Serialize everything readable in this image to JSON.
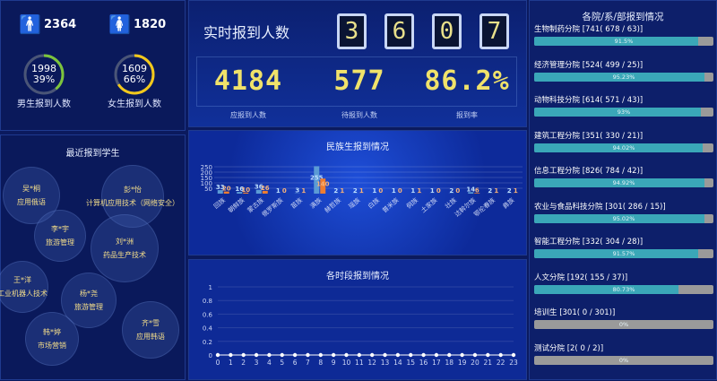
{
  "gender": {
    "male_total": "2364",
    "female_total": "1820",
    "male": {
      "count": "1998",
      "percent": "39%",
      "label": "男生报到人数",
      "ratio": 0.39,
      "color": "#7cc43c"
    },
    "female": {
      "count": "1609",
      "percent": "66%",
      "label": "女生报到人数",
      "ratio": 0.66,
      "color": "#f2c81c"
    },
    "male_icon": "male-person-icon",
    "female_icon": "female-person-icon"
  },
  "recent": {
    "title": "最近报到学生",
    "students": [
      {
        "name": "吴*桐",
        "major": "应用俄语"
      },
      {
        "name": "彭*怡",
        "major": "计算机应用技术（网络安全）"
      },
      {
        "name": "李*宇",
        "major": "旅游管理"
      },
      {
        "name": "刘*洲",
        "major": "药品生产技术"
      },
      {
        "name": "王*洋",
        "major": "工业机器人技术"
      },
      {
        "name": "杨*尧",
        "major": "旅游管理"
      },
      {
        "name": "韩*婷",
        "major": "市场营销"
      },
      {
        "name": "齐*雪",
        "major": "应用韩语"
      }
    ]
  },
  "realtime": {
    "title": "实时报到人数",
    "digits": [
      "3",
      "6",
      "0",
      "7"
    ],
    "stats": [
      {
        "value": "4184",
        "label": "应报到人数"
      },
      {
        "value": "577",
        "label": "待报到人数"
      },
      {
        "value": "86.2%",
        "label": "报到率"
      }
    ]
  },
  "chart_data": [
    {
      "type": "bar",
      "title": "民族生报到情况",
      "xlabel": "",
      "ylabel": "",
      "ylim": [
        0,
        250
      ],
      "yticks": [
        "50",
        "100",
        "150",
        "200",
        "250"
      ],
      "categories": [
        "回族",
        "朝鲜族",
        "蒙古族",
        "俄罗斯族",
        "苗族",
        "满族",
        "赫哲族",
        "瑶族",
        "白族",
        "普米族",
        "侗族",
        "土家族",
        "壮族",
        "达斡尔族",
        "鄂伦春族",
        "彝族"
      ],
      "series": [
        {
          "values": [
            33,
            16,
            36,
            1,
            3,
            255,
            2,
            2,
            1,
            1,
            1,
            1,
            2,
            14,
            2,
            2
          ],
          "color": "#5b9bd5"
        },
        {
          "values": [
            20,
            10,
            26,
            0,
            1,
            140,
            1,
            1,
            0,
            0,
            1,
            0,
            0,
            6,
            1,
            1
          ],
          "color": "#ed7d31"
        }
      ],
      "grid": true
    },
    {
      "type": "line",
      "title": "各时段报到情况",
      "xlabel": "",
      "ylabel": "",
      "ylim": [
        0,
        1
      ],
      "yticks": [
        "0",
        "0.2",
        "0.4",
        "0.6",
        "0.8",
        "1"
      ],
      "x": [
        "0",
        "1",
        "2",
        "3",
        "4",
        "5",
        "6",
        "7",
        "8",
        "9",
        "10",
        "11",
        "12",
        "13",
        "14",
        "15",
        "16",
        "17",
        "18",
        "19",
        "20",
        "21",
        "22",
        "23"
      ],
      "values": [
        0,
        0,
        0,
        0,
        0,
        0,
        0,
        0,
        0,
        0,
        0,
        0,
        0,
        0,
        0,
        0,
        0,
        0,
        0,
        0,
        0,
        0,
        0,
        0
      ],
      "color": "#ffffff",
      "grid": true
    }
  ],
  "departments": {
    "title": "各院/系/部报到情况",
    "items": [
      {
        "label": "生物制药分院 [741( 678 / 63)]",
        "percent": "91.5%",
        "ratio": 0.915
      },
      {
        "label": "经济管理分院 [524( 499 / 25)]",
        "percent": "95.23%",
        "ratio": 0.9523
      },
      {
        "label": "动物科技分院 [614( 571 / 43)]",
        "percent": "93%",
        "ratio": 0.93
      },
      {
        "label": "建筑工程分院 [351( 330 / 21)]",
        "percent": "94.02%",
        "ratio": 0.9402
      },
      {
        "label": "信息工程分院 [826( 784 / 42)]",
        "percent": "94.92%",
        "ratio": 0.9492
      },
      {
        "label": "农业与食品科技分院 [301( 286 / 15)]",
        "percent": "95.02%",
        "ratio": 0.9502
      },
      {
        "label": "智能工程分院 [332( 304 / 28)]",
        "percent": "91.57%",
        "ratio": 0.9157
      },
      {
        "label": "人文分院 [192( 155 / 37)]",
        "percent": "80.73%",
        "ratio": 0.8073
      },
      {
        "label": "培训生 [301( 0 / 301)]",
        "percent": "0%",
        "ratio": 0
      },
      {
        "label": "测试分院 [2( 0 / 2)]",
        "percent": "0%",
        "ratio": 0
      }
    ]
  },
  "colors": {
    "bar_fill": "#3aa7b8",
    "bar_bg": "#9a9a9a",
    "digit": "#f0e26a",
    "male_icon": "#3a9be0",
    "female_icon": "#e8386a"
  }
}
